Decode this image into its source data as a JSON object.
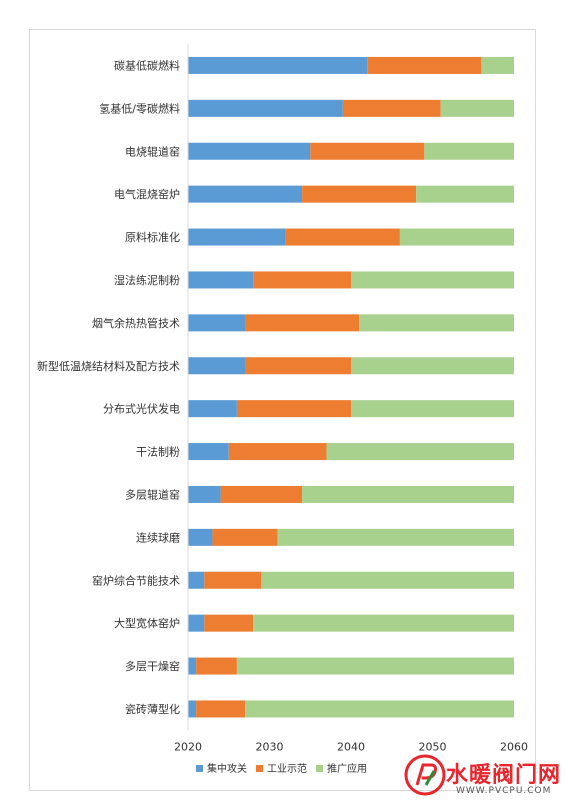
{
  "chart_data": {
    "type": "bar",
    "orientation": "horizontal",
    "stacked": true,
    "categories": [
      "碳基低碳燃料",
      "氢基低/零碳燃料",
      "电烧辊道窑",
      "电气混烧窑炉",
      "原料标准化",
      "湿法练泥制粉",
      "烟气余热热管技术",
      "新型低温烧结材料及配方技术",
      "分布式光伏发电",
      "干法制粉",
      "多层辊道窑",
      "连续球磨",
      "窑炉综合节能技术",
      "大型宽体窑炉",
      "多层干燥窑",
      "瓷砖薄型化"
    ],
    "start": 2020,
    "series": [
      {
        "name": "集中攻关",
        "color": "#5b9bd5",
        "end_values": [
          2042,
          2039,
          2035,
          2034,
          2032,
          2028,
          2027,
          2027,
          2026,
          2025,
          2024,
          2023,
          2022,
          2022,
          2021,
          2021
        ]
      },
      {
        "name": "工业示范",
        "color": "#ed7d31",
        "end_values": [
          2056,
          2051,
          2049,
          2048,
          2046,
          2040,
          2041,
          2040,
          2040,
          2037,
          2034,
          2031,
          2029,
          2028,
          2026,
          2027
        ]
      },
      {
        "name": "推广应用",
        "color": "#a9d18e",
        "end_values": [
          2060,
          2060,
          2060,
          2060,
          2060,
          2060,
          2060,
          2060,
          2060,
          2060,
          2060,
          2060,
          2060,
          2060,
          2060,
          2060
        ]
      }
    ],
    "xlim": [
      2020,
      2060
    ],
    "xticks": [
      2020,
      2030,
      2040,
      2050,
      2060
    ],
    "legend_position": "bottom",
    "grid": false
  },
  "watermark": {
    "title": "水暖阀门网",
    "subtitle": "WWW.PVCPU.COM"
  }
}
